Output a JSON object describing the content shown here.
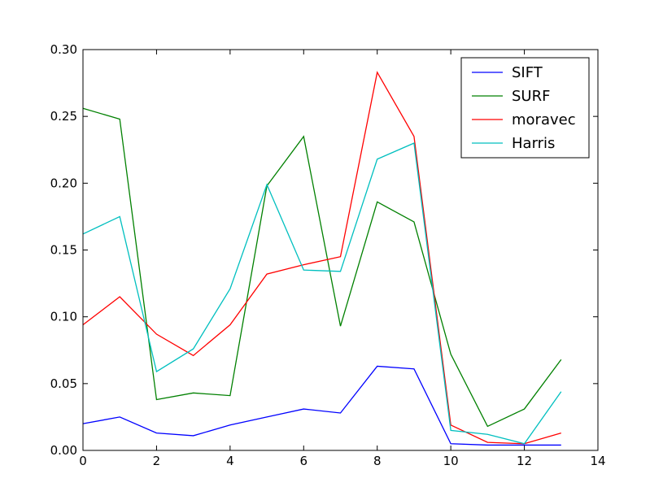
{
  "chart_data": {
    "type": "line",
    "title": "",
    "xlabel": "",
    "ylabel": "",
    "xlim": [
      0,
      14
    ],
    "ylim": [
      0,
      0.3
    ],
    "x_ticks": [
      0,
      2,
      4,
      6,
      8,
      10,
      12,
      14
    ],
    "x_tick_labels": [
      "0",
      "2",
      "4",
      "6",
      "8",
      "10",
      "12",
      "14"
    ],
    "y_ticks": [
      0,
      0.05,
      0.1,
      0.15,
      0.2,
      0.25,
      0.3
    ],
    "y_tick_labels": [
      "0.00",
      "0.05",
      "0.10",
      "0.15",
      "0.20",
      "0.25",
      "0.30"
    ],
    "grid": false,
    "legend_position": "top-right",
    "x": [
      0,
      1,
      2,
      3,
      4,
      5,
      6,
      7,
      8,
      9,
      10,
      11,
      12,
      13
    ],
    "series": [
      {
        "name": "SIFT",
        "color": "#0000ff",
        "values": [
          0.02,
          0.025,
          0.013,
          0.011,
          0.019,
          0.025,
          0.031,
          0.028,
          0.063,
          0.061,
          0.005,
          0.004,
          0.004,
          0.004
        ]
      },
      {
        "name": "SURF",
        "color": "#008000",
        "values": [
          0.256,
          0.248,
          0.038,
          0.043,
          0.041,
          0.198,
          0.235,
          0.093,
          0.186,
          0.171,
          0.072,
          0.018,
          0.031,
          0.068
        ]
      },
      {
        "name": "moravec",
        "color": "#ff0000",
        "values": [
          0.094,
          0.115,
          0.087,
          0.071,
          0.094,
          0.132,
          0.139,
          0.145,
          0.283,
          0.235,
          0.019,
          0.006,
          0.005,
          0.013
        ]
      },
      {
        "name": "Harris",
        "color": "#00bfbf",
        "values": [
          0.162,
          0.175,
          0.059,
          0.076,
          0.121,
          0.199,
          0.135,
          0.134,
          0.218,
          0.23,
          0.015,
          0.012,
          0.005,
          0.044
        ]
      }
    ]
  }
}
